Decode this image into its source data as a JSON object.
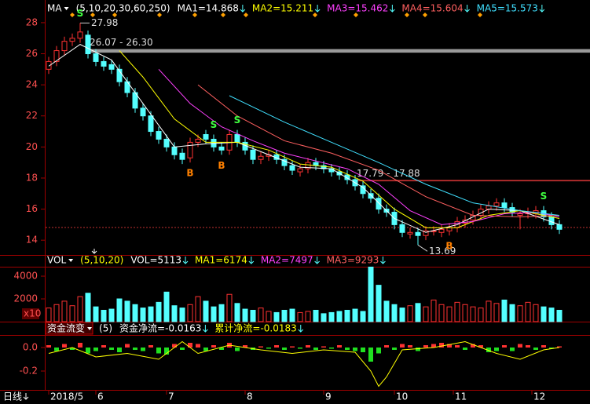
{
  "chart_data": [
    {
      "type": "candlestick",
      "indicator": "MA",
      "params": "(5,10,20,30,60,250)",
      "ylim": [
        13.05,
        28.45
      ],
      "yticks": [
        14,
        16,
        18,
        20,
        22,
        24,
        26,
        28
      ],
      "up_color": "#ff3232",
      "down_color": "#54ffff",
      "open": [
        25.0,
        25.5,
        26.2,
        26.8,
        27.0,
        27.2,
        26.0,
        25.5,
        25.3,
        25.0,
        24.2,
        23.5,
        22.5,
        22.0,
        21.0,
        20.5,
        20.0,
        19.6,
        19.3,
        20.3,
        20.8,
        20.5,
        20.0,
        19.8,
        20.8,
        20.3,
        19.8,
        19.2,
        19.4,
        19.5,
        19.2,
        18.8,
        18.4,
        18.6,
        19.0,
        18.8,
        18.6,
        18.4,
        18.2,
        17.9,
        17.5,
        17.0,
        16.7,
        16.0,
        15.8,
        15.0,
        14.4,
        14.5,
        14.3,
        14.6,
        14.5,
        14.6,
        14.8,
        15.1,
        15.3,
        15.6,
        16.0,
        16.2,
        16.4,
        16.1,
        15.6,
        15.7,
        15.7,
        15.9,
        15.5,
        15.0
      ],
      "high": [
        25.8,
        26.5,
        27.1,
        27.3,
        27.98,
        27.5,
        26.3,
        25.8,
        25.6,
        25.3,
        24.5,
        23.8,
        22.8,
        22.3,
        21.3,
        20.8,
        20.3,
        19.9,
        20.6,
        20.8,
        21.1,
        20.8,
        20.3,
        21.1,
        21.1,
        20.6,
        20.1,
        19.7,
        19.8,
        19.8,
        19.5,
        19.1,
        18.9,
        19.3,
        19.3,
        19.1,
        18.9,
        18.7,
        18.5,
        18.2,
        17.8,
        17.3,
        17.0,
        16.3,
        16.1,
        15.3,
        14.8,
        14.8,
        14.9,
        14.9,
        15.0,
        15.1,
        15.5,
        15.6,
        15.9,
        16.3,
        16.5,
        16.7,
        16.7,
        16.4,
        16.0,
        16.1,
        16.2,
        16.2,
        15.8,
        15.3
      ],
      "low": [
        24.7,
        25.2,
        25.9,
        26.5,
        26.7,
        25.7,
        25.2,
        24.9,
        24.7,
        23.9,
        23.2,
        22.2,
        21.7,
        20.7,
        20.2,
        19.7,
        19.2,
        18.9,
        19.0,
        20.0,
        20.2,
        19.7,
        19.5,
        19.5,
        20.0,
        19.5,
        18.9,
        18.9,
        19.1,
        18.9,
        18.5,
        18.2,
        18.1,
        18.3,
        18.5,
        18.3,
        18.1,
        17.9,
        17.6,
        17.2,
        16.7,
        16.4,
        15.7,
        15.5,
        14.7,
        14.2,
        14.1,
        13.69,
        14.0,
        14.3,
        14.2,
        14.3,
        14.5,
        14.8,
        15.0,
        15.3,
        15.7,
        15.9,
        15.8,
        15.5,
        14.7,
        15.4,
        15.4,
        15.2,
        14.7,
        14.4
      ],
      "close": [
        25.5,
        26.2,
        26.8,
        27.0,
        27.4,
        26.0,
        25.5,
        25.2,
        25.0,
        24.2,
        23.5,
        22.5,
        22.0,
        21.0,
        20.5,
        20.0,
        19.5,
        19.2,
        20.3,
        20.5,
        20.5,
        20.0,
        19.8,
        20.8,
        20.3,
        19.8,
        19.2,
        19.4,
        19.5,
        19.2,
        18.8,
        18.5,
        18.6,
        19.0,
        18.8,
        18.6,
        18.4,
        18.2,
        17.9,
        17.5,
        17.0,
        16.7,
        16.0,
        15.8,
        15.0,
        14.5,
        14.5,
        14.3,
        14.6,
        14.6,
        14.7,
        14.8,
        15.2,
        15.3,
        15.6,
        16.0,
        16.2,
        16.4,
        16.1,
        15.8,
        15.7,
        15.8,
        15.9,
        15.5,
        15.0,
        14.7
      ],
      "series": [
        {
          "name": "MA1=14.868",
          "color": "#ffffff",
          "x": [
            0,
            4,
            8,
            12,
            16,
            20,
            24,
            28,
            32,
            36,
            40,
            44,
            48,
            52,
            56,
            60,
            65
          ],
          "values": [
            25.2,
            26.6,
            25.6,
            22.8,
            20.0,
            20.2,
            20.3,
            19.5,
            18.7,
            18.6,
            17.4,
            15.4,
            14.5,
            15.0,
            16.0,
            15.9,
            15.0
          ]
        },
        {
          "name": "MA2=15.211",
          "color": "#ffff00",
          "x": [
            9,
            12,
            16,
            20,
            24,
            28,
            32,
            36,
            40,
            44,
            48,
            52,
            56,
            60,
            65
          ],
          "values": [
            26.2,
            24.5,
            21.8,
            20.3,
            20.3,
            19.8,
            18.9,
            18.7,
            17.8,
            16.0,
            14.8,
            14.8,
            15.6,
            15.9,
            15.4
          ]
        },
        {
          "name": "MA3=15.462",
          "color": "#ff40ff",
          "x": [
            14,
            18,
            22,
            26,
            30,
            34,
            38,
            42,
            46,
            50,
            54,
            58,
            62,
            65
          ],
          "values": [
            25.0,
            22.8,
            21.3,
            20.4,
            19.6,
            19.1,
            18.6,
            17.6,
            15.9,
            15.0,
            15.2,
            15.7,
            15.8,
            15.5
          ]
        },
        {
          "name": "MA4=15.604",
          "color": "#ff6060",
          "x": [
            19,
            24,
            30,
            36,
            42,
            48,
            54,
            60,
            65
          ],
          "values": [
            24.0,
            22.0,
            20.4,
            19.6,
            18.5,
            16.8,
            15.6,
            15.5,
            15.6
          ]
        },
        {
          "name": "MA5=15.573",
          "color": "#40e0ff",
          "x": [
            23,
            30,
            36,
            42,
            48,
            54,
            60,
            65
          ],
          "values": [
            23.3,
            21.6,
            20.3,
            19.0,
            17.6,
            16.4,
            15.9,
            15.6
          ]
        }
      ],
      "annotations": [
        {
          "text": "27.98",
          "index": 4,
          "value": 27.98
        },
        {
          "text": "13.69",
          "index": 47,
          "value": 13.69
        },
        {
          "text": "26.07 - 26.30",
          "index": 5,
          "low": 26.07,
          "high": 26.3,
          "color": "#9a9a9a"
        },
        {
          "text": "17.79 - 17.88",
          "index": 39,
          "low": 17.79,
          "high": 17.88,
          "color": "#c03030"
        }
      ],
      "signals": [
        {
          "label": "S",
          "index": 4
        },
        {
          "label": "B",
          "index": 18
        },
        {
          "label": "S",
          "index": 21
        },
        {
          "label": "B",
          "index": 22
        },
        {
          "label": "S",
          "index": 24
        },
        {
          "label": "B",
          "index": 51
        },
        {
          "label": "S",
          "index": 63
        }
      ]
    },
    {
      "type": "bar",
      "indicator": "VOL",
      "params": "(5,10,20)",
      "readout": "VOL=5113",
      "series_labels": [
        {
          "name": "MA1=6174",
          "color": "#ffff00"
        },
        {
          "name": "MA2=7497",
          "color": "#ff40ff"
        },
        {
          "name": "MA3=9293",
          "color": "#ff6060"
        }
      ],
      "unit": "x10",
      "ylim": [
        0,
        4830
      ],
      "yticks": [
        2000,
        4000
      ],
      "values": [
        1200,
        1500,
        1800,
        1400,
        2200,
        2500,
        1300,
        1000,
        1100,
        2000,
        1800,
        1500,
        1200,
        1300,
        1700,
        2600,
        1400,
        1200,
        1500,
        2200,
        1800,
        1300,
        1500,
        2400,
        1600,
        1100,
        1000,
        1200,
        900,
        800,
        1000,
        1100,
        800,
        900,
        1000,
        700,
        800,
        900,
        1000,
        1100,
        900,
        4800,
        3200,
        1800,
        1500,
        1200,
        1400,
        1600,
        1300,
        1900,
        1500,
        1300,
        1700,
        1500,
        1300,
        1200,
        1800,
        1600,
        1900,
        1500,
        1400,
        1700,
        1500,
        1300,
        1200,
        1000
      ]
    },
    {
      "type": "flow",
      "indicator": "资金流变",
      "params": "(5)",
      "readouts": [
        {
          "text": "资金净流=-0.0163",
          "color": "#ffffff"
        },
        {
          "text": "累计净流=-0.0183",
          "color": "#ffff00"
        }
      ],
      "ylim": [
        -0.36,
        0.1
      ],
      "yticks": [
        {
          "value": 0,
          "label": "0.0"
        },
        {
          "value": -0.2,
          "label": "-0.2"
        }
      ],
      "values": [
        0.02,
        -0.03,
        0.03,
        -0.02,
        0.04,
        -0.05,
        -0.03,
        0.02,
        -0.02,
        -0.04,
        0.03,
        -0.02,
        -0.03,
        0.02,
        -0.05,
        -0.06,
        0.03,
        -0.02,
        0.04,
        0.03,
        -0.03,
        0.02,
        -0.02,
        0.04,
        -0.03,
        0.02,
        -0.02,
        0.01,
        -0.01,
        0.02,
        -0.02,
        0.01,
        -0.01,
        0.02,
        -0.02,
        0.01,
        -0.01,
        0.02,
        -0.02,
        -0.03,
        -0.04,
        -0.12,
        -0.05,
        0.02,
        -0.02,
        0.03,
        0.02,
        -0.03,
        0.02,
        0.03,
        0.04,
        0.03,
        0.02,
        -0.02,
        0.03,
        0.02,
        -0.04,
        -0.03,
        0.02,
        -0.03,
        0.03,
        0.02,
        -0.02,
        0.02,
        -0.01,
        0.01
      ],
      "line": {
        "color": "#ffff00",
        "x": [
          0,
          3,
          6,
          10,
          14,
          17,
          19,
          23,
          27,
          31,
          35,
          39,
          41,
          42,
          43,
          45,
          49,
          53,
          57,
          60,
          63,
          65
        ],
        "values": [
          -0.05,
          0.0,
          -0.08,
          -0.05,
          -0.1,
          0.05,
          -0.05,
          0.02,
          -0.02,
          -0.05,
          -0.02,
          -0.04,
          -0.2,
          -0.33,
          -0.25,
          -0.02,
          0.0,
          0.05,
          -0.05,
          -0.1,
          -0.02,
          0.0
        ]
      },
      "xticks": [
        {
          "value": 0,
          "label": "2018/5"
        },
        {
          "value": 6,
          "label": "6"
        },
        {
          "value": 15,
          "label": "7"
        },
        {
          "value": 25,
          "label": "8"
        },
        {
          "value": 35,
          "label": "9"
        },
        {
          "value": 44,
          "label": "10"
        },
        {
          "value": 51.5,
          "label": "11"
        },
        {
          "value": 61.5,
          "label": "12"
        }
      ]
    }
  ],
  "period": "日线"
}
